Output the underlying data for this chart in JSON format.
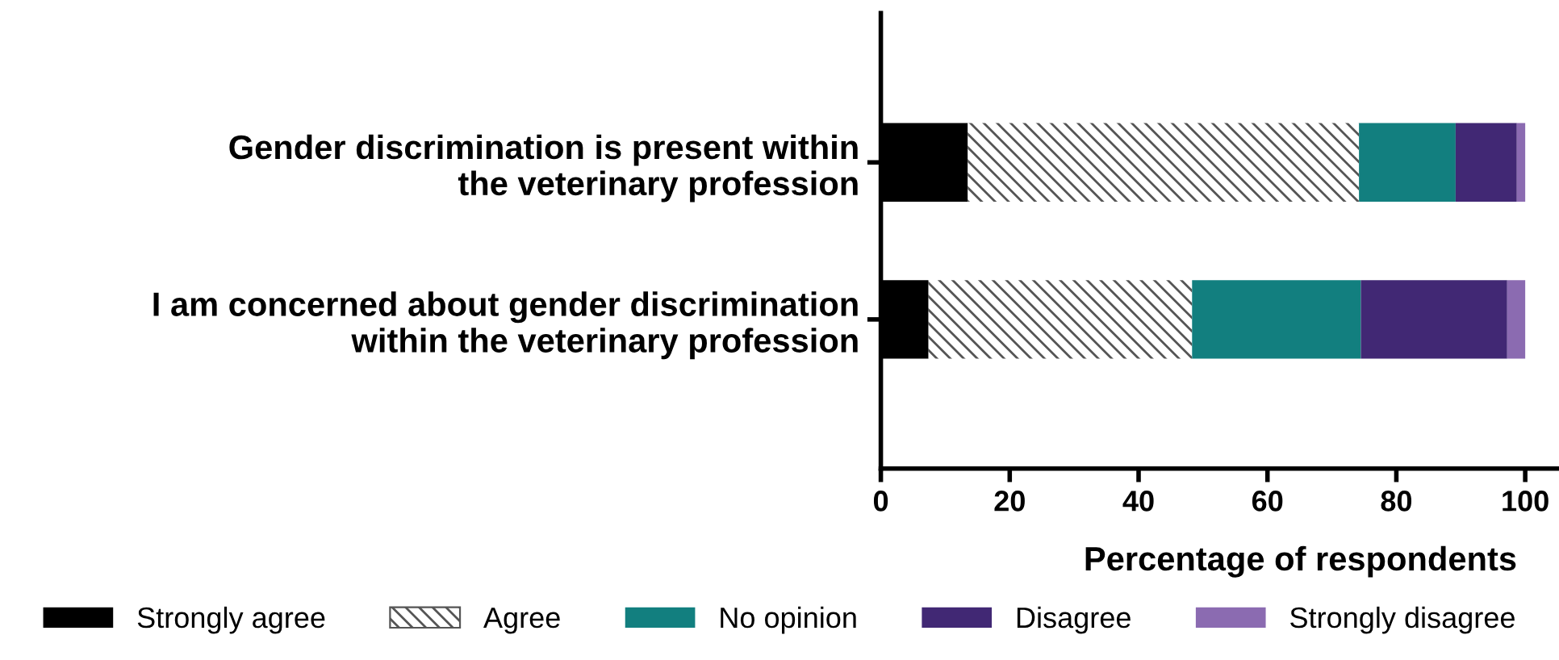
{
  "chart_data": {
    "type": "bar",
    "orientation": "horizontal",
    "stacked": true,
    "categories": [
      "Gender discrimination is present within\nthe veterinary profession",
      "I am concerned about gender discrimination\nwithin the veterinary profession"
    ],
    "series": [
      {
        "name": "Strongly agree",
        "color": "#000000",
        "values": [
          13.5,
          7.4
        ]
      },
      {
        "name": "Agree",
        "color": "#ffffff",
        "values": [
          60.7,
          40.9
        ]
      },
      {
        "name": "No opinion",
        "color": "#127f7f",
        "values": [
          15,
          26.2
        ]
      },
      {
        "name": "Disagree",
        "color": "#412874",
        "values": [
          9.5,
          22.7
        ]
      },
      {
        "name": "Strongly disagree",
        "color": "#8b6bb1",
        "values": [
          1.3,
          2.8
        ]
      }
    ],
    "xlabel": "Percentage of respondents",
    "xlim": [
      0,
      105
    ],
    "xticks": [
      0,
      20,
      40,
      60,
      80,
      100
    ],
    "grid": false,
    "legend": "bottom"
  }
}
